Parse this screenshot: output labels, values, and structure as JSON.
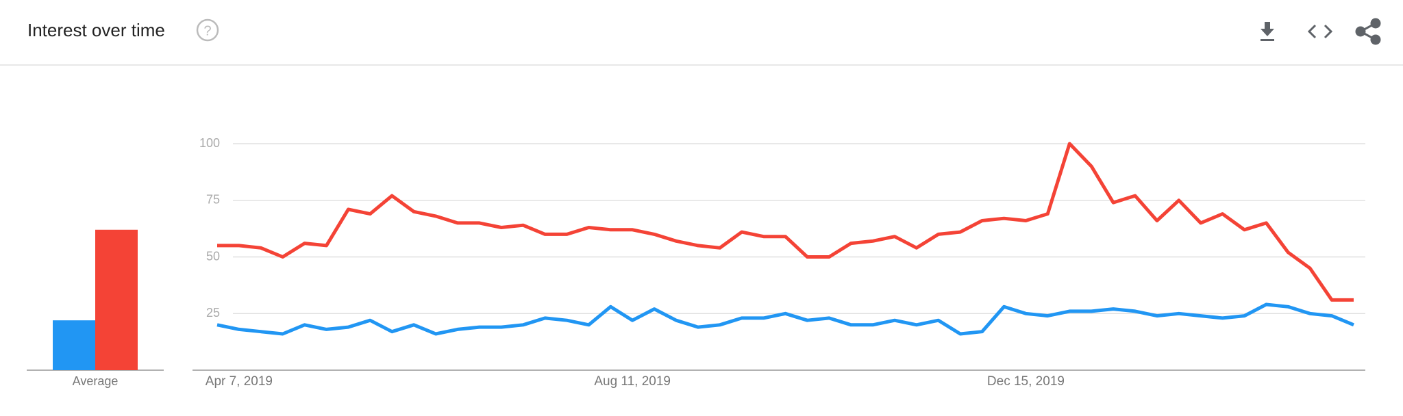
{
  "header": {
    "title": "Interest over time"
  },
  "chart_data": [
    {
      "type": "bar",
      "categories": [
        "Average"
      ],
      "series": [
        {
          "color": "#2196f3",
          "values": [
            22
          ]
        },
        {
          "color": "#f44336",
          "values": [
            62
          ]
        }
      ]
    },
    {
      "type": "line",
      "categories": [
        null,
        "Apr 7, 2019",
        null,
        null,
        null,
        null,
        null,
        null,
        null,
        null,
        null,
        null,
        null,
        null,
        null,
        null,
        null,
        null,
        null,
        "Aug 11, 2019",
        null,
        null,
        null,
        null,
        null,
        null,
        null,
        null,
        null,
        null,
        null,
        null,
        null,
        null,
        null,
        null,
        null,
        "Dec 15, 2019",
        null,
        null,
        null,
        null,
        null,
        null,
        null,
        null,
        null,
        null,
        null,
        null,
        null,
        null,
        null
      ],
      "series": [
        {
          "color": "#2196f3",
          "values": [
            20,
            18,
            17,
            16,
            20,
            18,
            19,
            22,
            17,
            20,
            16,
            18,
            19,
            19,
            20,
            23,
            22,
            20,
            28,
            22,
            27,
            22,
            19,
            20,
            23,
            23,
            25,
            22,
            23,
            20,
            20,
            22,
            20,
            22,
            16,
            17,
            28,
            25,
            24,
            26,
            26,
            27,
            26,
            24,
            25,
            24,
            23,
            24,
            29,
            28,
            25,
            24,
            20
          ]
        },
        {
          "color": "#f44336",
          "values": [
            55,
            55,
            54,
            50,
            56,
            55,
            71,
            69,
            77,
            70,
            68,
            65,
            65,
            63,
            64,
            60,
            60,
            63,
            62,
            62,
            60,
            57,
            55,
            54,
            61,
            59,
            59,
            50,
            50,
            56,
            57,
            59,
            54,
            60,
            61,
            66,
            67,
            66,
            69,
            100,
            90,
            74,
            77,
            66,
            75,
            65,
            69,
            62,
            65,
            52,
            45,
            31,
            31
          ]
        }
      ],
      "ylim": [
        0,
        100
      ],
      "yticks": [
        25,
        50,
        75,
        100
      ],
      "grid": true
    }
  ]
}
